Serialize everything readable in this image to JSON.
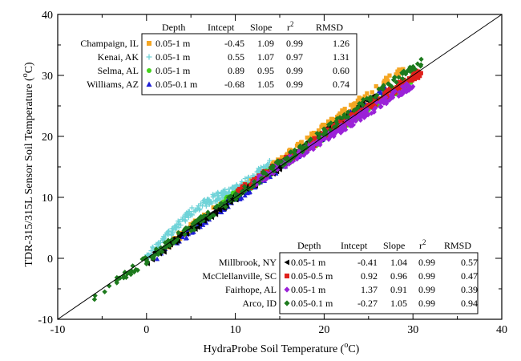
{
  "chart_data": {
    "type": "scatter",
    "xlabel_main": "HydraProbe Soil Temperature (",
    "xlabel_deg": "o",
    "xlabel_unit": "C)",
    "ylabel_main": "TDR-315/315L Sensor Soil Temperature (",
    "ylabel_deg": "o",
    "ylabel_unit": "C)",
    "xlim": [
      -10,
      40
    ],
    "ylim": [
      -10,
      40
    ],
    "x_ticks": [
      -10,
      0,
      10,
      20,
      30,
      40
    ],
    "y_ticks": [
      -10,
      0,
      10,
      20,
      30,
      40
    ],
    "one_to_one_line": true,
    "grid": false,
    "legend_headers": {
      "depth": "Depth",
      "intercept": "Intcept",
      "slope": "Slope",
      "r2_base": "r",
      "r2_exp": "2",
      "rmsd": "RMSD"
    },
    "legends": [
      {
        "position": "top-left",
        "entries": [
          {
            "site": "Champaign, IL",
            "marker": "square",
            "color": "#f5a623",
            "depth": "0.05-1 m",
            "intercept": "-0.45",
            "slope": "1.09",
            "r2": "0.99",
            "rmsd": "1.26"
          },
          {
            "site": "Kenai, AK",
            "marker": "plus",
            "color": "#6fd3d8",
            "depth": "0.05-1 m",
            "intercept": "0.55",
            "slope": "1.07",
            "r2": "0.97",
            "rmsd": "1.31"
          },
          {
            "site": "Selma, AL",
            "marker": "circle",
            "color": "#44d41c",
            "depth": "0.05-1 m",
            "intercept": "0.89",
            "slope": "0.95",
            "r2": "0.99",
            "rmsd": "0.60"
          },
          {
            "site": "Williams, AZ",
            "marker": "triangle-up",
            "color": "#1f1fd6",
            "depth": "0.05-0.1 m",
            "intercept": "-0.68",
            "slope": "1.05",
            "r2": "0.99",
            "rmsd": "0.74"
          }
        ]
      },
      {
        "position": "bottom-right",
        "entries": [
          {
            "site": "Millbrook, NY",
            "marker": "triangle-left",
            "color": "#000000",
            "depth": "0.05-1 m",
            "intercept": "-0.41",
            "slope": "1.04",
            "r2": "0.99",
            "rmsd": "0.57"
          },
          {
            "site": "McClellanville, SC",
            "marker": "square",
            "color": "#e0201b",
            "depth": "0.05-0.5 m",
            "intercept": "0.92",
            "slope": "0.96",
            "r2": "0.99",
            "rmsd": "0.47"
          },
          {
            "site": "Fairhope, AL",
            "marker": "diamond",
            "color": "#9b22d8",
            "depth": "0.05-1 m",
            "intercept": "1.37",
            "slope": "0.91",
            "r2": "0.99",
            "rmsd": "0.39"
          },
          {
            "site": "Arco, ID",
            "marker": "diamond",
            "color": "#1d7a1d",
            "depth": "0.05-0.1 m",
            "intercept": "-0.27",
            "slope": "1.05",
            "r2": "0.99",
            "rmsd": "0.94"
          }
        ]
      }
    ],
    "series": [
      {
        "site": "Champaign, IL",
        "marker": "square",
        "color": "#f5a623",
        "x_range": [
          2,
          29
        ],
        "intercept": -0.45,
        "slope": 1.09
      },
      {
        "site": "Kenai, AK",
        "marker": "plus",
        "color": "#6fd3d8",
        "x_range": [
          0,
          14
        ],
        "intercept": 0.55,
        "slope": 1.07
      },
      {
        "site": "Selma, AL",
        "marker": "circle",
        "color": "#44d41c",
        "x_range": [
          8,
          30.5
        ],
        "intercept": 0.89,
        "slope": 0.95
      },
      {
        "site": "Williams, AZ",
        "marker": "triangle-up",
        "color": "#1f1fd6",
        "x_range": [
          1,
          27
        ],
        "intercept": -0.68,
        "slope": 1.05
      },
      {
        "site": "Millbrook, NY",
        "marker": "triangle-left",
        "color": "#000000",
        "x_range": [
          0,
          26
        ],
        "intercept": -0.41,
        "slope": 1.04
      },
      {
        "site": "McClellanville, SC",
        "marker": "square",
        "color": "#e0201b",
        "x_range": [
          10,
          31
        ],
        "intercept": 0.92,
        "slope": 0.96
      },
      {
        "site": "Fairhope, AL",
        "marker": "diamond",
        "color": "#9b22d8",
        "x_range": [
          12,
          30
        ],
        "intercept": 1.37,
        "slope": 0.91
      },
      {
        "site": "Arco, ID",
        "marker": "diamond",
        "color": "#1d7a1d",
        "x_range": [
          -6,
          31
        ],
        "intercept": -0.27,
        "slope": 1.05
      }
    ]
  }
}
